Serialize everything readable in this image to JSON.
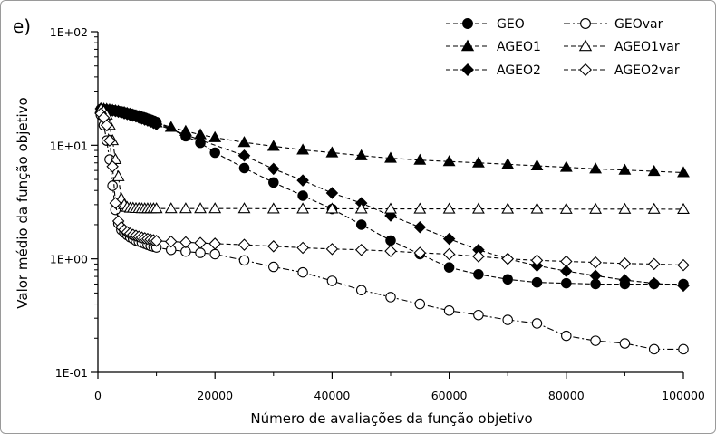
{
  "chart_data": {
    "type": "line",
    "panel_label": "e)",
    "xlabel": "Número de avaliações da função objetivo",
    "ylabel": "Valor médio da função objetivo",
    "xlim": [
      0,
      100000
    ],
    "ylim": [
      0.1,
      100
    ],
    "yscale": "log",
    "x_ticks": [
      0,
      20000,
      40000,
      60000,
      80000,
      100000
    ],
    "x_tick_labels": [
      "0",
      "20000",
      "40000",
      "60000",
      "80000",
      "100000"
    ],
    "y_ticks": [
      0.1,
      1,
      10,
      100
    ],
    "y_tick_labels": [
      "1E-01",
      "1E+00",
      "1E+01",
      "1E+02"
    ],
    "grid": false,
    "legend_position": "top-right",
    "series": [
      {
        "name": "GEO",
        "marker": "circle",
        "filled": true,
        "line": "dashed",
        "x": [
          500,
          1000,
          1500,
          2000,
          2500,
          3000,
          3500,
          4000,
          4500,
          5000,
          5500,
          6000,
          6500,
          7000,
          7500,
          8000,
          8500,
          9000,
          9500,
          10000,
          15000,
          17500,
          20000,
          25000,
          30000,
          35000,
          40000,
          45000,
          50000,
          55000,
          60000,
          65000,
          70000,
          75000,
          80000,
          85000,
          90000,
          95000,
          100000
        ],
        "y": [
          20.8,
          20.7,
          20.6,
          20.5,
          20.4,
          20.2,
          20.0,
          19.8,
          19.5,
          19.2,
          19.0,
          18.7,
          18.4,
          18.1,
          17.8,
          17.5,
          17.1,
          16.8,
          16.4,
          16.0,
          12.0,
          10.5,
          8.6,
          6.3,
          4.7,
          3.6,
          2.75,
          2.0,
          1.45,
          1.1,
          0.84,
          0.73,
          0.66,
          0.62,
          0.61,
          0.6,
          0.6,
          0.6,
          0.6
        ]
      },
      {
        "name": "AGEO1",
        "marker": "triangle",
        "filled": true,
        "line": "dashed",
        "x": [
          500,
          1000,
          1500,
          2000,
          2500,
          3000,
          3500,
          4000,
          4500,
          5000,
          5500,
          6000,
          6500,
          7000,
          7500,
          8000,
          8500,
          9000,
          9500,
          10000,
          12500,
          15000,
          17500,
          20000,
          25000,
          30000,
          35000,
          40000,
          45000,
          50000,
          55000,
          60000,
          65000,
          70000,
          75000,
          80000,
          85000,
          90000,
          95000,
          100000
        ],
        "y": [
          21.0,
          20.9,
          20.8,
          20.6,
          20.4,
          20.2,
          20.0,
          19.7,
          19.5,
          19.2,
          18.9,
          18.6,
          18.3,
          18.0,
          17.6,
          17.3,
          16.9,
          16.6,
          16.2,
          15.8,
          14.4,
          13.3,
          12.4,
          11.7,
          10.6,
          9.8,
          9.1,
          8.6,
          8.1,
          7.7,
          7.4,
          7.2,
          7.0,
          6.8,
          6.6,
          6.4,
          6.2,
          6.05,
          5.9,
          5.75
        ]
      },
      {
        "name": "AGEO2",
        "marker": "diamond",
        "filled": true,
        "line": "dashed",
        "x": [
          500,
          1000,
          1500,
          2000,
          2500,
          3000,
          3500,
          4000,
          4500,
          5000,
          5500,
          6000,
          6500,
          7000,
          7500,
          8000,
          8500,
          9000,
          9500,
          10000,
          25000,
          30000,
          35000,
          40000,
          45000,
          50000,
          55000,
          60000,
          65000,
          70000,
          75000,
          80000,
          85000,
          90000,
          95000,
          100000
        ],
        "y": [
          21.0,
          20.8,
          20.6,
          20.4,
          20.2,
          20.0,
          19.7,
          19.4,
          19.1,
          18.8,
          18.5,
          18.2,
          17.9,
          17.5,
          17.2,
          16.8,
          16.5,
          16.1,
          15.7,
          15.3,
          8.1,
          6.2,
          4.9,
          3.8,
          3.1,
          2.4,
          1.9,
          1.5,
          1.2,
          1.0,
          0.87,
          0.78,
          0.71,
          0.65,
          0.61,
          0.58
        ]
      },
      {
        "name": "GEOvar",
        "marker": "circle",
        "filled": false,
        "line": "dashdot",
        "x": [
          500,
          1000,
          1500,
          2000,
          2500,
          3000,
          3500,
          4000,
          4500,
          5000,
          5500,
          6000,
          6500,
          7000,
          7500,
          8000,
          8500,
          9000,
          9500,
          10000,
          12500,
          15000,
          17500,
          20000,
          25000,
          30000,
          35000,
          40000,
          45000,
          50000,
          55000,
          60000,
          65000,
          70000,
          75000,
          80000,
          85000,
          90000,
          95000,
          100000
        ],
        "y": [
          18.5,
          15.0,
          11.0,
          7.5,
          4.4,
          2.7,
          2.05,
          1.8,
          1.7,
          1.62,
          1.55,
          1.5,
          1.45,
          1.42,
          1.39,
          1.36,
          1.33,
          1.3,
          1.28,
          1.26,
          1.2,
          1.16,
          1.13,
          1.1,
          0.97,
          0.85,
          0.76,
          0.64,
          0.53,
          0.46,
          0.4,
          0.35,
          0.32,
          0.29,
          0.27,
          0.21,
          0.19,
          0.18,
          0.16,
          0.16
        ]
      },
      {
        "name": "AGEO1var",
        "marker": "triangle",
        "filled": false,
        "line": "dashed",
        "x": [
          500,
          1000,
          1500,
          2000,
          2500,
          3000,
          3500,
          4000,
          4500,
          5000,
          5500,
          6000,
          6500,
          7000,
          7500,
          8000,
          8500,
          9000,
          9500,
          10000,
          12500,
          15000,
          17500,
          20000,
          25000,
          30000,
          35000,
          40000,
          45000,
          50000,
          55000,
          60000,
          65000,
          70000,
          75000,
          80000,
          85000,
          90000,
          95000,
          100000
        ],
        "y": [
          20.8,
          20.0,
          18.5,
          15.0,
          11.0,
          7.5,
          5.3,
          3.4,
          3.0,
          2.85,
          2.8,
          2.8,
          2.78,
          2.78,
          2.77,
          2.77,
          2.77,
          2.77,
          2.77,
          2.77,
          2.77,
          2.77,
          2.77,
          2.77,
          2.77,
          2.76,
          2.76,
          2.76,
          2.76,
          2.75,
          2.75,
          2.75,
          2.75,
          2.75,
          2.75,
          2.74,
          2.74,
          2.74,
          2.74,
          2.73
        ]
      },
      {
        "name": "AGEO2var",
        "marker": "diamond",
        "filled": false,
        "line": "dashed",
        "x": [
          500,
          1000,
          1500,
          2000,
          2500,
          3000,
          3500,
          4000,
          4500,
          5000,
          5500,
          6000,
          6500,
          7000,
          7500,
          8000,
          8500,
          9000,
          9500,
          10000,
          12500,
          15000,
          17500,
          20000,
          25000,
          30000,
          35000,
          40000,
          45000,
          50000,
          55000,
          60000,
          65000,
          70000,
          75000,
          80000,
          85000,
          90000,
          95000,
          100000
        ],
        "y": [
          19.0,
          17.5,
          15.0,
          11.0,
          6.5,
          3.1,
          2.15,
          1.9,
          1.8,
          1.72,
          1.67,
          1.63,
          1.6,
          1.57,
          1.54,
          1.52,
          1.5,
          1.48,
          1.46,
          1.44,
          1.42,
          1.4,
          1.38,
          1.36,
          1.33,
          1.29,
          1.25,
          1.22,
          1.2,
          1.17,
          1.13,
          1.1,
          1.05,
          1.0,
          0.97,
          0.95,
          0.93,
          0.91,
          0.9,
          0.88
        ]
      }
    ]
  }
}
